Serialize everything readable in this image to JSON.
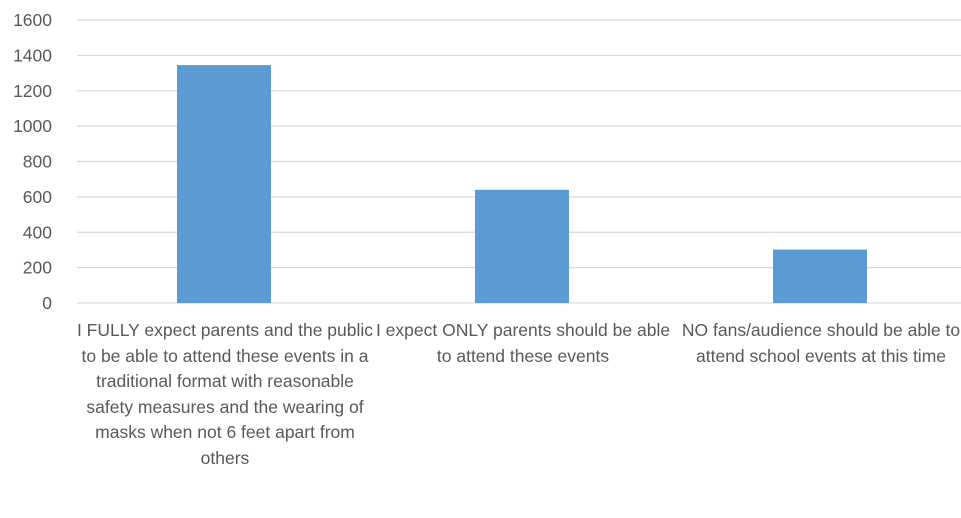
{
  "chart_data": {
    "type": "bar",
    "title": "",
    "xlabel": "",
    "ylabel": "",
    "ylim": [
      0,
      1600
    ],
    "y_ticks": [
      0,
      200,
      400,
      600,
      800,
      1000,
      1200,
      1400,
      1600
    ],
    "grid": true,
    "legend": "none",
    "categories": [
      "I FULLY expect parents and the public to be able to attend these events in a traditional format with reasonable safety measures and the wearing of masks when not 6 feet apart from others",
      "I expect ONLY parents should be able to attend these events",
      "NO fans/audience should be able to attend school events at this time"
    ],
    "values": [
      1345,
      640,
      302
    ],
    "colors": {
      "bar": "#5B9BD5",
      "grid": "#D9D9D9",
      "axis": "#D9D9D9",
      "text": "#595959"
    }
  }
}
